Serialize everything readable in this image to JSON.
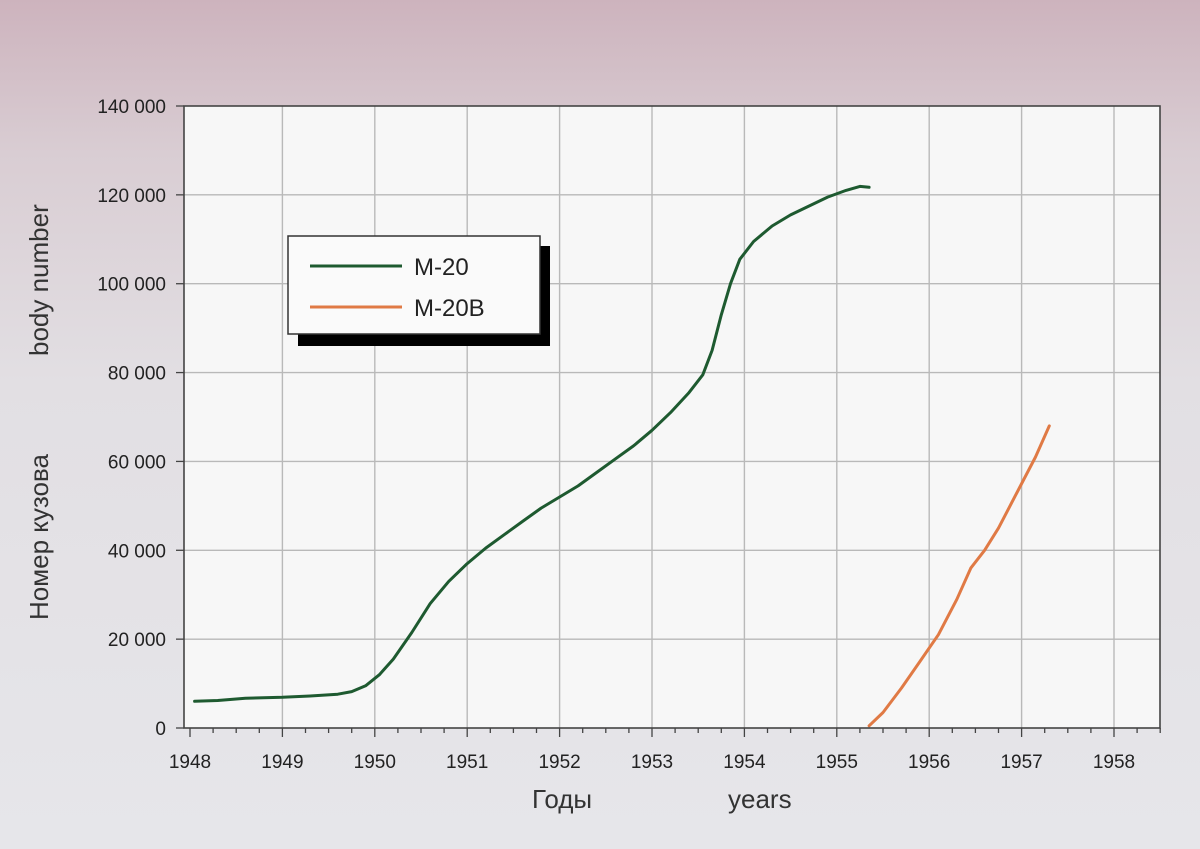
{
  "chart_data": {
    "type": "line",
    "xlabel": "Годы",
    "xlabel_en": "years",
    "ylabel": "Номер кузова",
    "ylabel_en": "body number",
    "xlim": [
      1948,
      1958.5
    ],
    "ylim": [
      0,
      140000
    ],
    "x_ticks": [
      "1948",
      "1949",
      "1950",
      "1951",
      "1952",
      "1953",
      "1954",
      "1955",
      "1956",
      "1957",
      "1958"
    ],
    "y_ticks": [
      "0",
      "20 000",
      "40 000",
      "60 000",
      "80 000",
      "100 000",
      "120 000",
      "140 000"
    ],
    "grid": true,
    "legend_position": "upper-left",
    "series": [
      {
        "name": "M-20",
        "color": "#1e5a30",
        "points": [
          [
            1948.05,
            6000
          ],
          [
            1948.3,
            6200
          ],
          [
            1948.6,
            6700
          ],
          [
            1949.0,
            6900
          ],
          [
            1949.3,
            7200
          ],
          [
            1949.6,
            7600
          ],
          [
            1949.75,
            8200
          ],
          [
            1949.9,
            9500
          ],
          [
            1950.05,
            12000
          ],
          [
            1950.2,
            15500
          ],
          [
            1950.4,
            21500
          ],
          [
            1950.6,
            28000
          ],
          [
            1950.8,
            33000
          ],
          [
            1951.0,
            37000
          ],
          [
            1951.2,
            40500
          ],
          [
            1951.4,
            43500
          ],
          [
            1951.6,
            46500
          ],
          [
            1951.8,
            49500
          ],
          [
            1952.0,
            52000
          ],
          [
            1952.2,
            54500
          ],
          [
            1952.4,
            57500
          ],
          [
            1952.6,
            60500
          ],
          [
            1952.8,
            63500
          ],
          [
            1953.0,
            67000
          ],
          [
            1953.2,
            71000
          ],
          [
            1953.4,
            75500
          ],
          [
            1953.55,
            79500
          ],
          [
            1953.65,
            85000
          ],
          [
            1953.75,
            93000
          ],
          [
            1953.85,
            100000
          ],
          [
            1953.95,
            105500
          ],
          [
            1954.1,
            109500
          ],
          [
            1954.3,
            113000
          ],
          [
            1954.5,
            115500
          ],
          [
            1954.7,
            117500
          ],
          [
            1954.9,
            119500
          ],
          [
            1955.1,
            121000
          ],
          [
            1955.25,
            121900
          ],
          [
            1955.35,
            121700
          ]
        ]
      },
      {
        "name": "M-20B",
        "color": "#e07a45",
        "points": [
          [
            1955.35,
            500
          ],
          [
            1955.5,
            3500
          ],
          [
            1955.7,
            9000
          ],
          [
            1955.9,
            15000
          ],
          [
            1956.1,
            21000
          ],
          [
            1956.3,
            29000
          ],
          [
            1956.45,
            36000
          ],
          [
            1956.6,
            40000
          ],
          [
            1956.75,
            45000
          ],
          [
            1956.95,
            53000
          ],
          [
            1957.15,
            61000
          ],
          [
            1957.3,
            68000
          ]
        ]
      }
    ]
  }
}
